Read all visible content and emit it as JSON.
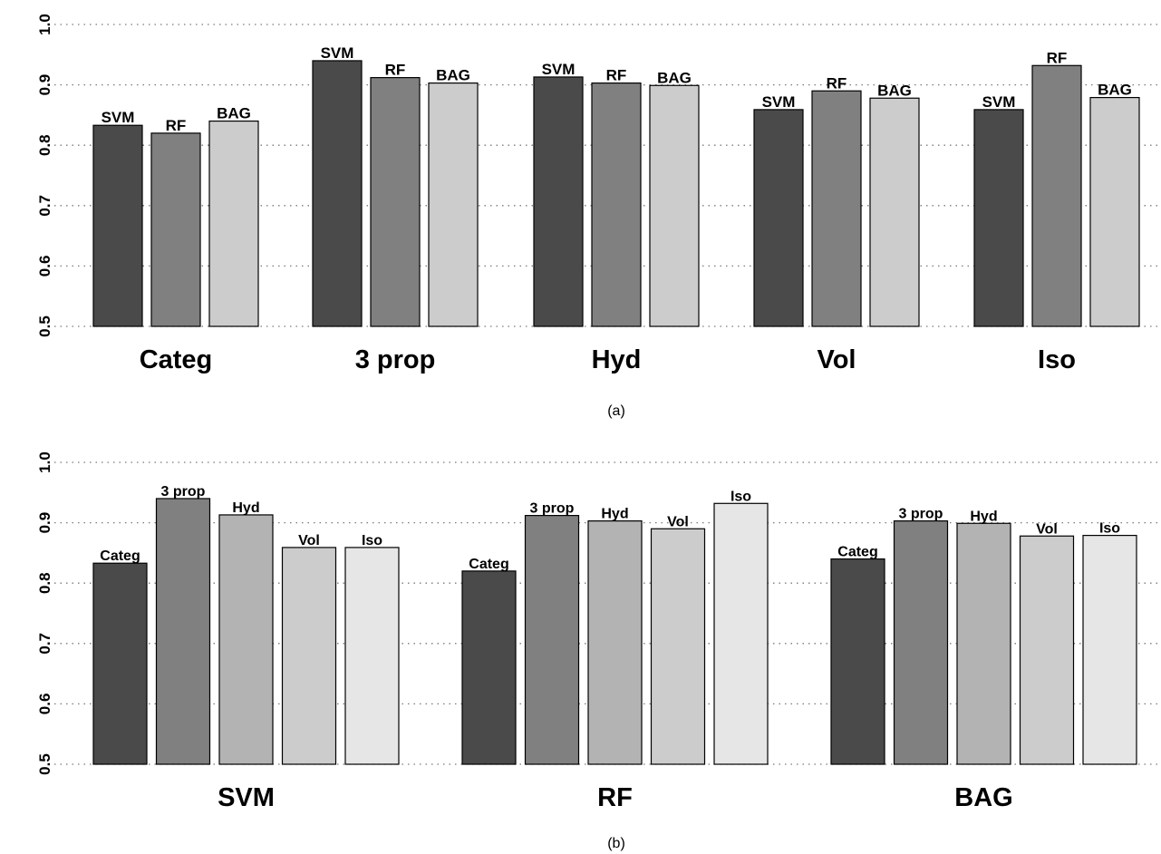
{
  "chart_data": [
    {
      "type": "bar",
      "panel_label": "(a)",
      "ylim": [
        0.5,
        1.0
      ],
      "yticks": [
        "0.5",
        "0.6",
        "0.7",
        "0.8",
        "0.9",
        "1.0"
      ],
      "grid": true,
      "colors": [
        "#4a4a4a",
        "#808080",
        "#cccccc"
      ],
      "groups": [
        {
          "name": "Categ",
          "bars": [
            {
              "label": "SVM",
              "value": 0.833
            },
            {
              "label": "RF",
              "value": 0.82
            },
            {
              "label": "BAG",
              "value": 0.84
            }
          ]
        },
        {
          "name": "3 prop",
          "bars": [
            {
              "label": "SVM",
              "value": 0.94
            },
            {
              "label": "RF",
              "value": 0.912
            },
            {
              "label": "BAG",
              "value": 0.903
            }
          ]
        },
        {
          "name": "Hyd",
          "bars": [
            {
              "label": "SVM",
              "value": 0.913
            },
            {
              "label": "RF",
              "value": 0.903
            },
            {
              "label": "BAG",
              "value": 0.899
            }
          ]
        },
        {
          "name": "Vol",
          "bars": [
            {
              "label": "SVM",
              "value": 0.859
            },
            {
              "label": "RF",
              "value": 0.89
            },
            {
              "label": "BAG",
              "value": 0.878
            }
          ]
        },
        {
          "name": "Iso",
          "bars": [
            {
              "label": "SVM",
              "value": 0.859
            },
            {
              "label": "RF",
              "value": 0.932
            },
            {
              "label": "BAG",
              "value": 0.879
            }
          ]
        }
      ]
    },
    {
      "type": "bar",
      "panel_label": "(b)",
      "ylim": [
        0.5,
        1.0
      ],
      "yticks": [
        "0.5",
        "0.6",
        "0.7",
        "0.8",
        "0.9",
        "1.0"
      ],
      "grid": true,
      "colors": [
        "#4a4a4a",
        "#808080",
        "#b3b3b3",
        "#cccccc",
        "#e6e6e6"
      ],
      "groups": [
        {
          "name": "SVM",
          "bars": [
            {
              "label": "Categ",
              "value": 0.833
            },
            {
              "label": "3 prop",
              "value": 0.94
            },
            {
              "label": "Hyd",
              "value": 0.913
            },
            {
              "label": "Vol",
              "value": 0.859
            },
            {
              "label": "Iso",
              "value": 0.859
            }
          ]
        },
        {
          "name": "RF",
          "bars": [
            {
              "label": "Categ",
              "value": 0.82
            },
            {
              "label": "3 prop",
              "value": 0.912
            },
            {
              "label": "Hyd",
              "value": 0.903
            },
            {
              "label": "Vol",
              "value": 0.89
            },
            {
              "label": "Iso",
              "value": 0.932
            }
          ]
        },
        {
          "name": "BAG",
          "bars": [
            {
              "label": "Categ",
              "value": 0.84
            },
            {
              "label": "3 prop",
              "value": 0.903
            },
            {
              "label": "Hyd",
              "value": 0.899
            },
            {
              "label": "Vol",
              "value": 0.878
            },
            {
              "label": "Iso",
              "value": 0.879
            }
          ]
        }
      ]
    }
  ]
}
